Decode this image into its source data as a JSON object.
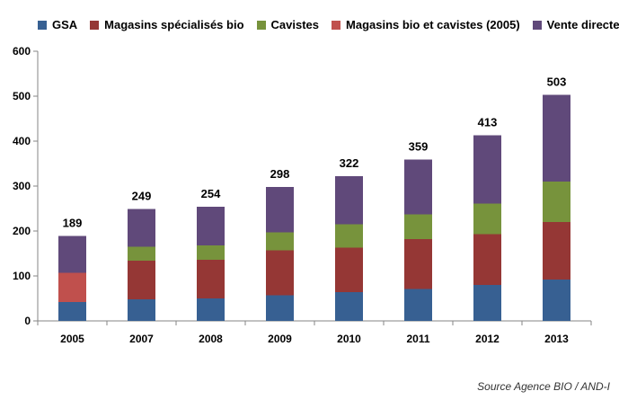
{
  "chart_data": {
    "type": "bar",
    "stacked": true,
    "categories": [
      "2005",
      "2007",
      "2008",
      "2009",
      "2010",
      "2011",
      "2012",
      "2013"
    ],
    "series": [
      {
        "name": "GSA",
        "color": "#376092",
        "values": [
          42,
          48,
          50,
          57,
          64,
          71,
          80,
          92
        ]
      },
      {
        "name": "Magasins spécialisés bio",
        "color": "#953735",
        "values": [
          0,
          86,
          86,
          100,
          99,
          111,
          113,
          128
        ]
      },
      {
        "name": "Cavistes",
        "color": "#77933C",
        "values": [
          0,
          31,
          32,
          40,
          52,
          55,
          68,
          90
        ]
      },
      {
        "name": "Magasins bio et cavistes (2005)",
        "color": "#C0504D",
        "values": [
          65,
          0,
          0,
          0,
          0,
          0,
          0,
          0
        ]
      },
      {
        "name": "Vente directe",
        "color": "#60497A",
        "values": [
          82,
          84,
          86,
          101,
          107,
          122,
          152,
          193
        ]
      }
    ],
    "totals": [
      "189",
      "249",
      "254",
      "298",
      "322",
      "359",
      "413",
      "503"
    ],
    "ylim": [
      0,
      600
    ],
    "yticks": [
      "0",
      "100",
      "200",
      "300",
      "400",
      "500",
      "600"
    ],
    "legend_position": "top",
    "grid": false
  },
  "source_text": "Source Agence BIO / AND-I"
}
